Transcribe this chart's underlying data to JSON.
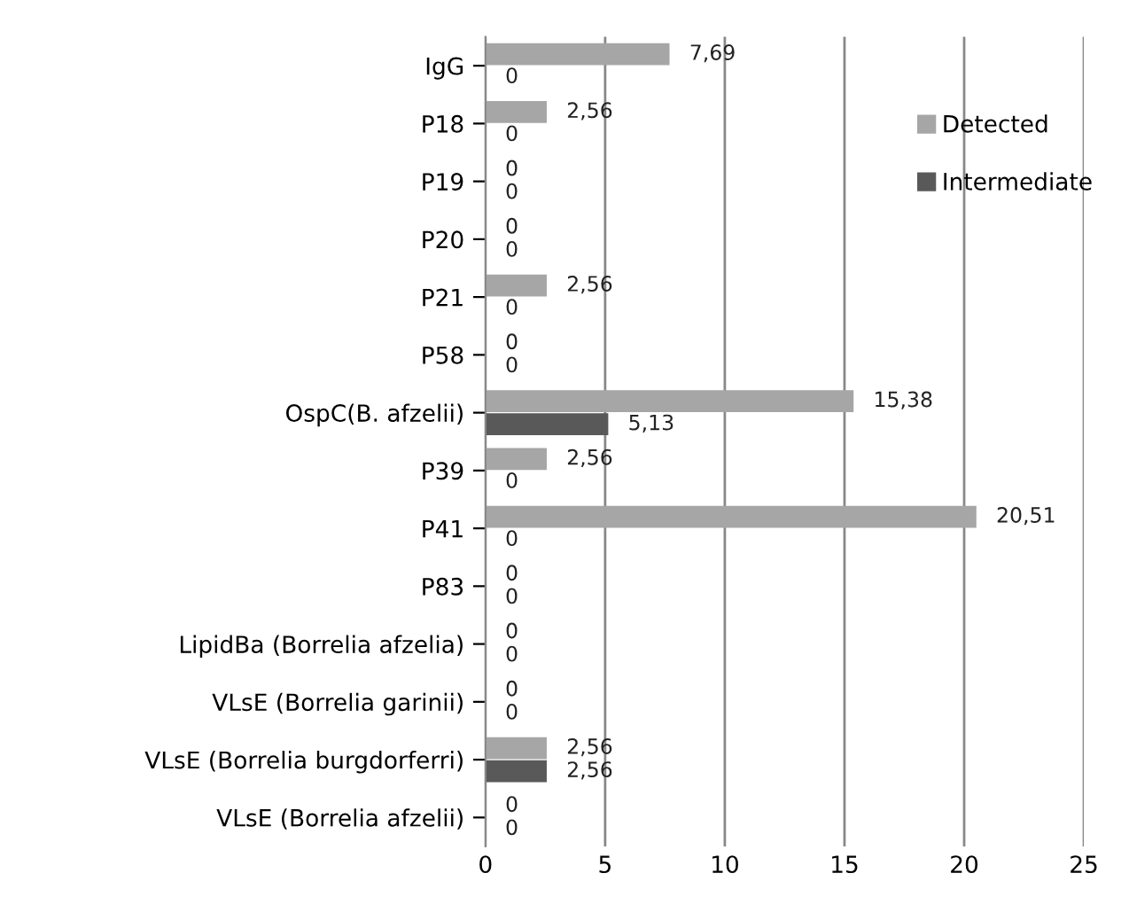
{
  "chart_data": {
    "type": "bar",
    "orientation": "horizontal",
    "categories": [
      "IgG",
      "P18",
      "P19",
      "P20",
      "P21",
      "P58",
      "OspC(B. afzelii)",
      "P39",
      "P41",
      "P83",
      "LipidBa (Borrelia afzelia)",
      "VLsE (Borrelia garinii)",
      "VLsE (Borrelia burgdorferri)",
      "VLsE (Borrelia afzelii)"
    ],
    "series": [
      {
        "name": "Detected",
        "color": "#a6a6a6",
        "values": [
          7.69,
          2.56,
          0,
          0,
          2.56,
          0,
          15.38,
          2.56,
          20.51,
          0,
          0,
          0,
          2.56,
          0
        ],
        "value_labels": [
          "7,69",
          "2,56",
          "0",
          "0",
          "2,56",
          "0",
          "15,38",
          "2,56",
          "20,51",
          "0",
          "0",
          "0",
          "2,56",
          "0"
        ]
      },
      {
        "name": "Intermediate",
        "color": "#595959",
        "values": [
          0,
          0,
          0,
          0,
          0,
          0,
          5.13,
          0,
          0,
          0,
          0,
          0,
          2.56,
          0
        ],
        "value_labels": [
          "0",
          "0",
          "0",
          "0",
          "0",
          "0",
          "5,13",
          "0",
          "0",
          "0",
          "0",
          "0",
          "2,56",
          "0"
        ]
      }
    ],
    "xlim": [
      0,
      25
    ],
    "xticks": [
      0,
      5,
      10,
      15,
      20,
      25
    ],
    "grid": "x",
    "legend": "top right"
  }
}
